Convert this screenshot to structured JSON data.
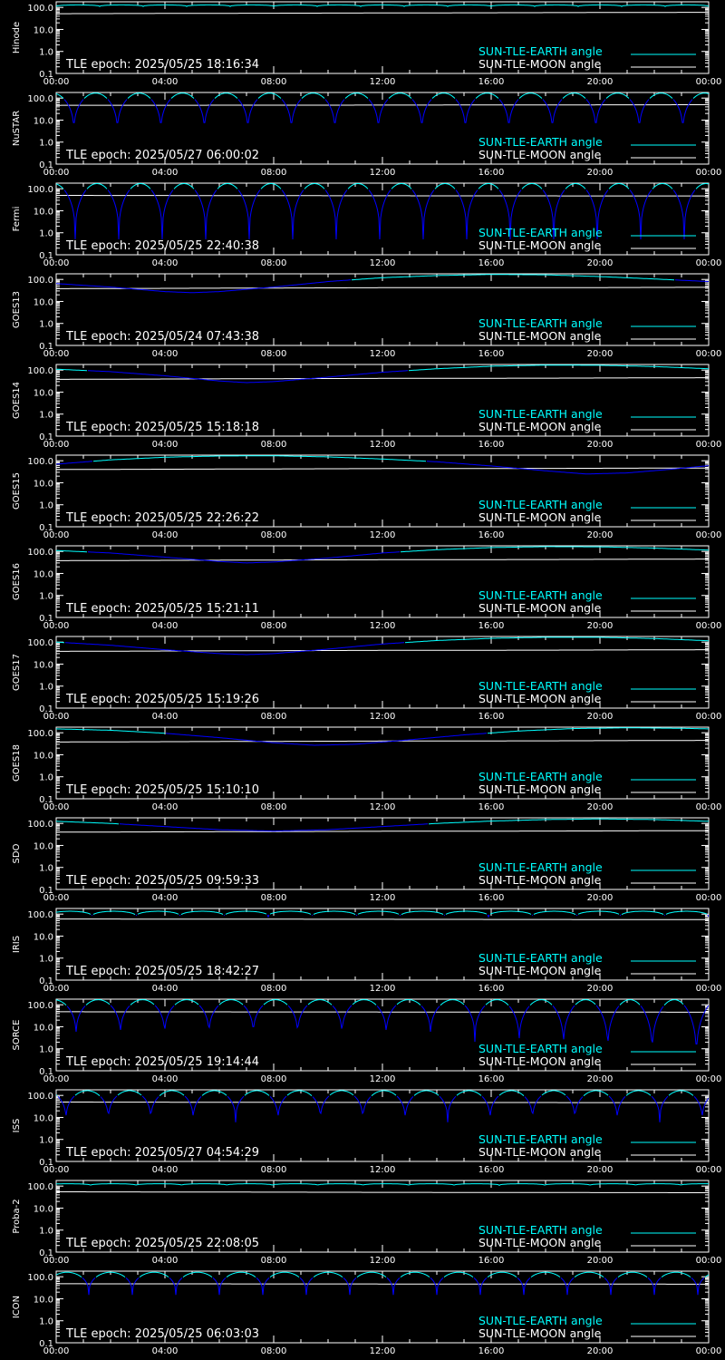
{
  "colors": {
    "background": "#000000",
    "axes": "#ffffff",
    "sun_earth_visible": "#00ffff",
    "sun_earth_occulted": "#0000ff",
    "sun_moon": "#ffffff"
  },
  "legend": {
    "sun_earth": "SUN-TLE-EARTH angle",
    "sun_moon": "SUN-TLE-MOON angle"
  },
  "axis": {
    "y_tick_labels": [
      "100.0",
      "10.0",
      "1.0",
      "0.1"
    ],
    "x_tick_labels": [
      "00:00",
      "04:00",
      "08:00",
      "12:00",
      "16:00",
      "20:00",
      "00:00"
    ]
  },
  "chart_data": [
    {
      "type": "line",
      "ylabel": "Hinode",
      "epoch_text": "TLE epoch: 2025/05/25 18:16:34",
      "yscale": "log",
      "ylim": [
        0.1,
        180
      ],
      "xlim": [
        0,
        24
      ],
      "series": [
        {
          "name": "SUN-TLE-EARTH angle",
          "shape": "orbital",
          "period_h": 1.6,
          "max": 130,
          "min": 110,
          "phase": 0.0
        },
        {
          "name": "SUN-TLE-MOON angle",
          "shape": "smooth",
          "points": [
            [
              0,
              52
            ],
            [
              12,
              56
            ],
            [
              24,
              60
            ]
          ]
        }
      ]
    },
    {
      "type": "line",
      "ylabel": "NuSTAR",
      "epoch_text": "TLE epoch: 2025/05/27 06:00:02",
      "yscale": "log",
      "ylim": [
        0.1,
        180
      ],
      "xlim": [
        0,
        24
      ],
      "series": [
        {
          "name": "SUN-TLE-EARTH angle",
          "shape": "orbital",
          "period_h": 1.6,
          "max": 168,
          "min": 2.0,
          "phase": 0.95
        },
        {
          "name": "SUN-TLE-MOON angle",
          "shape": "smooth",
          "points": [
            [
              0,
              47
            ],
            [
              12,
              48
            ],
            [
              24,
              50
            ]
          ]
        }
      ]
    },
    {
      "type": "line",
      "ylabel": "Fermi",
      "epoch_text": "TLE epoch: 2025/05/25 22:40:38",
      "yscale": "log",
      "ylim": [
        0.1,
        180
      ],
      "xlim": [
        0,
        24
      ],
      "series": [
        {
          "name": "SUN-TLE-EARTH angle",
          "shape": "orbital",
          "period_h": 1.6,
          "max": 172,
          "min": 0.5,
          "phase": 0.9
        },
        {
          "name": "SUN-TLE-MOON angle",
          "shape": "smooth",
          "points": [
            [
              0,
              50
            ],
            [
              12,
              48
            ],
            [
              24,
              47
            ]
          ]
        }
      ]
    },
    {
      "type": "line",
      "ylabel": "GOES13",
      "epoch_text": "TLE epoch: 2025/05/24 07:43:38",
      "yscale": "log",
      "ylim": [
        0.1,
        180
      ],
      "xlim": [
        0,
        24
      ],
      "series": [
        {
          "name": "SUN-TLE-EARTH angle",
          "shape": "smooth",
          "points": [
            [
              0,
              65
            ],
            [
              2,
              45
            ],
            [
              4,
              28
            ],
            [
              5,
              25
            ],
            [
              6,
              28
            ],
            [
              8,
              45
            ],
            [
              10,
              80
            ],
            [
              12,
              120
            ],
            [
              14,
              150
            ],
            [
              16,
              168
            ],
            [
              18,
              162
            ],
            [
              20,
              135
            ],
            [
              22,
              105
            ],
            [
              24,
              80
            ]
          ]
        },
        {
          "name": "SUN-TLE-MOON angle",
          "shape": "smooth",
          "points": [
            [
              0,
              38
            ],
            [
              6,
              40
            ],
            [
              12,
              42
            ],
            [
              18,
              42
            ],
            [
              24,
              44
            ]
          ]
        }
      ]
    },
    {
      "type": "line",
      "ylabel": "GOES14",
      "epoch_text": "TLE epoch: 2025/05/25 15:18:18",
      "yscale": "log",
      "ylim": [
        0.1,
        180
      ],
      "xlim": [
        0,
        24
      ],
      "series": [
        {
          "name": "SUN-TLE-EARTH angle",
          "shape": "smooth",
          "points": [
            [
              0,
              110
            ],
            [
              2,
              85
            ],
            [
              4,
              55
            ],
            [
              6,
              32
            ],
            [
              7,
              27
            ],
            [
              8,
              30
            ],
            [
              10,
              48
            ],
            [
              12,
              80
            ],
            [
              14,
              115
            ],
            [
              16,
              150
            ],
            [
              18,
              168
            ],
            [
              20,
              165
            ],
            [
              22,
              145
            ],
            [
              24,
              115
            ]
          ]
        },
        {
          "name": "SUN-TLE-MOON angle",
          "shape": "smooth",
          "points": [
            [
              0,
              38
            ],
            [
              6,
              40
            ],
            [
              12,
              42
            ],
            [
              18,
              43
            ],
            [
              24,
              45
            ]
          ]
        }
      ]
    },
    {
      "type": "line",
      "ylabel": "GOES15",
      "epoch_text": "TLE epoch: 2025/05/25 22:26:22",
      "yscale": "log",
      "ylim": [
        0.1,
        180
      ],
      "xlim": [
        0,
        24
      ],
      "series": [
        {
          "name": "SUN-TLE-EARTH angle",
          "shape": "smooth",
          "points": [
            [
              0,
              70
            ],
            [
              2,
              110
            ],
            [
              4,
              145
            ],
            [
              6,
              165
            ],
            [
              8,
              168
            ],
            [
              10,
              150
            ],
            [
              12,
              120
            ],
            [
              14,
              90
            ],
            [
              16,
              58
            ],
            [
              18,
              35
            ],
            [
              19.5,
              25
            ],
            [
              21,
              28
            ],
            [
              22.5,
              40
            ],
            [
              24,
              60
            ]
          ]
        },
        {
          "name": "SUN-TLE-MOON angle",
          "shape": "smooth",
          "points": [
            [
              0,
              40
            ],
            [
              6,
              42
            ],
            [
              12,
              44
            ],
            [
              18,
              45
            ],
            [
              24,
              47
            ]
          ]
        }
      ]
    },
    {
      "type": "line",
      "ylabel": "GOES16",
      "epoch_text": "TLE epoch: 2025/05/25 15:21:11",
      "yscale": "log",
      "ylim": [
        0.1,
        180
      ],
      "xlim": [
        0,
        24
      ],
      "series": [
        {
          "name": "SUN-TLE-EARTH angle",
          "shape": "smooth",
          "points": [
            [
              0,
              110
            ],
            [
              2,
              85
            ],
            [
              4,
              55
            ],
            [
              6,
              35
            ],
            [
              7,
              30
            ],
            [
              8,
              33
            ],
            [
              10,
              50
            ],
            [
              12,
              85
            ],
            [
              14,
              120
            ],
            [
              16,
              150
            ],
            [
              18,
              165
            ],
            [
              20,
              162
            ],
            [
              22,
              142
            ],
            [
              24,
              115
            ]
          ]
        },
        {
          "name": "SUN-TLE-MOON angle",
          "shape": "smooth",
          "points": [
            [
              0,
              38
            ],
            [
              6,
              40
            ],
            [
              12,
              42
            ],
            [
              18,
              43
            ],
            [
              24,
              45
            ]
          ]
        }
      ]
    },
    {
      "type": "line",
      "ylabel": "GOES17",
      "epoch_text": "TLE epoch: 2025/05/25 15:19:26",
      "yscale": "log",
      "ylim": [
        0.1,
        180
      ],
      "xlim": [
        0,
        24
      ],
      "series": [
        {
          "name": "SUN-TLE-EARTH angle",
          "shape": "smooth",
          "points": [
            [
              0,
              100
            ],
            [
              2,
              72
            ],
            [
              4,
              45
            ],
            [
              6,
              30
            ],
            [
              7,
              27
            ],
            [
              8,
              30
            ],
            [
              10,
              48
            ],
            [
              12,
              82
            ],
            [
              14,
              118
            ],
            [
              16,
              148
            ],
            [
              18,
              166
            ],
            [
              20,
              165
            ],
            [
              22,
              145
            ],
            [
              24,
              115
            ]
          ]
        },
        {
          "name": "SUN-TLE-MOON angle",
          "shape": "smooth",
          "points": [
            [
              0,
              38
            ],
            [
              6,
              40
            ],
            [
              12,
              42
            ],
            [
              18,
              43
            ],
            [
              24,
              45
            ]
          ]
        }
      ]
    },
    {
      "type": "line",
      "ylabel": "GOES18",
      "epoch_text": "TLE epoch: 2025/05/25 15:10:10",
      "yscale": "log",
      "ylim": [
        0.1,
        180
      ],
      "xlim": [
        0,
        24
      ],
      "series": [
        {
          "name": "SUN-TLE-EARTH angle",
          "shape": "smooth",
          "points": [
            [
              0,
              150
            ],
            [
              2,
              130
            ],
            [
              4,
              95
            ],
            [
              6,
              60
            ],
            [
              8,
              35
            ],
            [
              9.5,
              27
            ],
            [
              11,
              30
            ],
            [
              13,
              48
            ],
            [
              15,
              80
            ],
            [
              17,
              120
            ],
            [
              19,
              155
            ],
            [
              21,
              168
            ],
            [
              23,
              160
            ],
            [
              24,
              150
            ]
          ]
        },
        {
          "name": "SUN-TLE-MOON angle",
          "shape": "smooth",
          "points": [
            [
              0,
              38
            ],
            [
              6,
              40
            ],
            [
              12,
              42
            ],
            [
              18,
              43
            ],
            [
              24,
              45
            ]
          ]
        }
      ]
    },
    {
      "type": "line",
      "ylabel": "SDO",
      "epoch_text": "TLE epoch: 2025/05/25 09:59:33",
      "yscale": "log",
      "ylim": [
        0.1,
        180
      ],
      "xlim": [
        0,
        24
      ],
      "series": [
        {
          "name": "SUN-TLE-EARTH angle",
          "shape": "smooth",
          "points": [
            [
              0,
              125
            ],
            [
              2,
              100
            ],
            [
              4,
              72
            ],
            [
              6,
              52
            ],
            [
              8,
              45
            ],
            [
              10,
              52
            ],
            [
              12,
              72
            ],
            [
              14,
              100
            ],
            [
              16,
              128
            ],
            [
              18,
              150
            ],
            [
              20,
              160
            ],
            [
              22,
              150
            ],
            [
              24,
              125
            ]
          ]
        },
        {
          "name": "SUN-TLE-MOON angle",
          "shape": "smooth",
          "points": [
            [
              0,
              40
            ],
            [
              6,
              42
            ],
            [
              12,
              44
            ],
            [
              18,
              45
            ],
            [
              24,
              47
            ]
          ]
        }
      ]
    },
    {
      "type": "line",
      "ylabel": "IRIS",
      "epoch_text": "TLE epoch: 2025/05/25 18:42:27",
      "yscale": "log",
      "ylim": [
        0.1,
        180
      ],
      "xlim": [
        0,
        24
      ],
      "series": [
        {
          "name": "SUN-TLE-EARTH angle",
          "shape": "orbital",
          "period_h": 1.62,
          "max": 135,
          "min": 75,
          "phase": 0.3
        },
        {
          "name": "SUN-TLE-MOON angle",
          "shape": "smooth",
          "points": [
            [
              0,
              60
            ],
            [
              12,
              58
            ],
            [
              24,
              56
            ]
          ]
        }
      ]
    },
    {
      "type": "line",
      "ylabel": "SORCE",
      "epoch_text": "TLE epoch: 2025/05/25 19:14:44",
      "yscale": "log",
      "ylim": [
        0.1,
        180
      ],
      "xlim": [
        0,
        24
      ],
      "series": [
        {
          "name": "SUN-TLE-EARTH angle",
          "shape": "orbital",
          "period_h": 1.63,
          "max": 170,
          "min": 3.0,
          "min_end": 0.2,
          "phase": 0.9
        },
        {
          "name": "SUN-TLE-MOON angle",
          "shape": "smooth",
          "points": [
            [
              0,
              48
            ],
            [
              12,
              47
            ],
            [
              24,
              46
            ]
          ]
        }
      ]
    },
    {
      "type": "line",
      "ylabel": "ISS",
      "epoch_text": "TLE epoch: 2025/05/27 04:54:29",
      "yscale": "log",
      "ylim": [
        0.1,
        180
      ],
      "xlim": [
        0,
        24
      ],
      "series": [
        {
          "name": "SUN-TLE-EARTH angle",
          "shape": "orbital",
          "period_h": 1.56,
          "max": 165,
          "min": 6,
          "phase": 1.2
        },
        {
          "name": "SUN-TLE-MOON angle",
          "shape": "smooth",
          "points": [
            [
              0,
              50
            ],
            [
              12,
              48
            ],
            [
              24,
              47
            ]
          ]
        }
      ]
    },
    {
      "type": "line",
      "ylabel": "Proba-2",
      "epoch_text": "TLE epoch: 2025/05/25 22:08:05",
      "yscale": "log",
      "ylim": [
        0.1,
        180
      ],
      "xlim": [
        0,
        24
      ],
      "series": [
        {
          "name": "SUN-TLE-EARTH angle",
          "shape": "orbital",
          "period_h": 1.67,
          "max": 128,
          "min": 108,
          "phase": 0.4
        },
        {
          "name": "SUN-TLE-MOON angle",
          "shape": "smooth",
          "points": [
            [
              0,
              55
            ],
            [
              12,
              52
            ],
            [
              24,
              50
            ]
          ]
        }
      ]
    },
    {
      "type": "line",
      "ylabel": "ICON",
      "epoch_text": "TLE epoch: 2025/05/25 06:03:03",
      "yscale": "log",
      "ylim": [
        0.1,
        180
      ],
      "xlim": [
        0,
        24
      ],
      "series": [
        {
          "name": "SUN-TLE-EARTH angle",
          "shape": "orbital",
          "period_h": 1.6,
          "max": 160,
          "min": 15,
          "phase": 0.4
        },
        {
          "name": "SUN-TLE-MOON angle",
          "shape": "smooth",
          "points": [
            [
              0,
              48
            ],
            [
              12,
              47
            ],
            [
              24,
              46
            ]
          ]
        }
      ]
    }
  ]
}
